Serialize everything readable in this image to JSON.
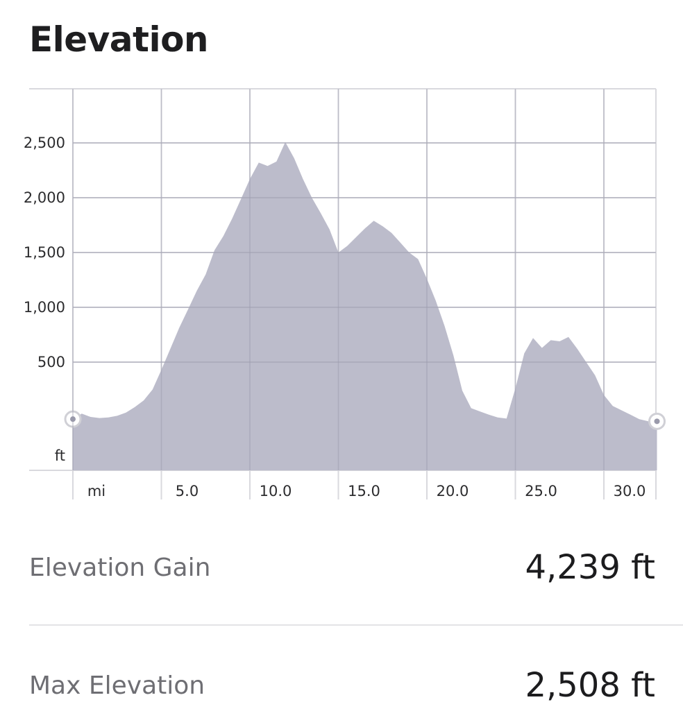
{
  "page": {
    "title": "Elevation"
  },
  "chart_data": {
    "type": "area",
    "xlabel": "mi",
    "ylabel": "ft",
    "x_ticks": [
      "5.0",
      "10.0",
      "15.0",
      "20.0",
      "25.0",
      "30.0"
    ],
    "y_ticks": [
      "500",
      "1,000",
      "1,500",
      "2,000",
      "2,500"
    ],
    "xlim": [
      0,
      33
    ],
    "ylim": [
      -500,
      3000
    ],
    "fill_color": "#b8b8c8",
    "grid": true,
    "series": [
      {
        "x": [
          0,
          0.5,
          1.0,
          1.5,
          2.0,
          2.5,
          3.0,
          3.5,
          4.0,
          4.5,
          5.0,
          5.5,
          6.0,
          6.5,
          7.0,
          7.5,
          8.0,
          8.5,
          9.0,
          9.5,
          10.0,
          10.5,
          11.0,
          11.5,
          12.0,
          12.5,
          13.0,
          13.5,
          14.0,
          14.5,
          15.0,
          15.5,
          16.0,
          16.5,
          17.0,
          17.5,
          18.0,
          18.5,
          19.0,
          19.5,
          20.0,
          20.5,
          21.0,
          21.5,
          22.0,
          22.5,
          23.0,
          23.5,
          24.0,
          24.5,
          25.0,
          25.5,
          26.0,
          26.5,
          27.0,
          27.5,
          28.0,
          28.5,
          29.0,
          29.5,
          30.0,
          30.5,
          31.0,
          31.5,
          32.0,
          32.5,
          33.0
        ],
        "values": [
          -20,
          30,
          0,
          -10,
          -5,
          10,
          40,
          90,
          150,
          250,
          430,
          620,
          810,
          980,
          1150,
          1300,
          1520,
          1650,
          1810,
          1990,
          2170,
          2320,
          2290,
          2330,
          2508,
          2360,
          2170,
          2000,
          1860,
          1710,
          1500,
          1560,
          1640,
          1720,
          1790,
          1740,
          1680,
          1590,
          1500,
          1440,
          1260,
          1060,
          830,
          560,
          240,
          80,
          50,
          20,
          -5,
          -15,
          260,
          580,
          720,
          630,
          700,
          690,
          730,
          620,
          500,
          380,
          200,
          100,
          60,
          20,
          -20,
          -40,
          -40
        ]
      }
    ]
  },
  "stats": [
    {
      "label": "Elevation Gain",
      "value": "4,239 ft"
    },
    {
      "label": "Max Elevation",
      "value": "2,508 ft"
    }
  ]
}
